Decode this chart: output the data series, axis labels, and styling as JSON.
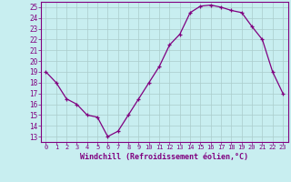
{
  "x": [
    0,
    1,
    2,
    3,
    4,
    5,
    6,
    7,
    8,
    9,
    10,
    11,
    12,
    13,
    14,
    15,
    16,
    17,
    18,
    19,
    20,
    21,
    22,
    23
  ],
  "y": [
    19,
    18,
    16.5,
    16,
    15,
    14.8,
    13,
    13.5,
    15,
    16.5,
    18,
    19.5,
    21.5,
    22.5,
    24.5,
    25.1,
    25.2,
    25,
    24.7,
    24.5,
    23.2,
    22,
    19,
    17
  ],
  "line_color": "#800080",
  "marker": "+",
  "marker_color": "#800080",
  "bg_color": "#c8eef0",
  "grid_color": "#aacccc",
  "xlabel": "Windchill (Refroidissement éolien,°C)",
  "xlabel_color": "#800080",
  "tick_color": "#800080",
  "spine_color": "#800080",
  "xlim": [
    -0.5,
    23.5
  ],
  "ylim": [
    12.5,
    25.5
  ],
  "yticks": [
    13,
    14,
    15,
    16,
    17,
    18,
    19,
    20,
    21,
    22,
    23,
    24,
    25
  ],
  "xticks": [
    0,
    1,
    2,
    3,
    4,
    5,
    6,
    7,
    8,
    9,
    10,
    11,
    12,
    13,
    14,
    15,
    16,
    17,
    18,
    19,
    20,
    21,
    22,
    23
  ]
}
